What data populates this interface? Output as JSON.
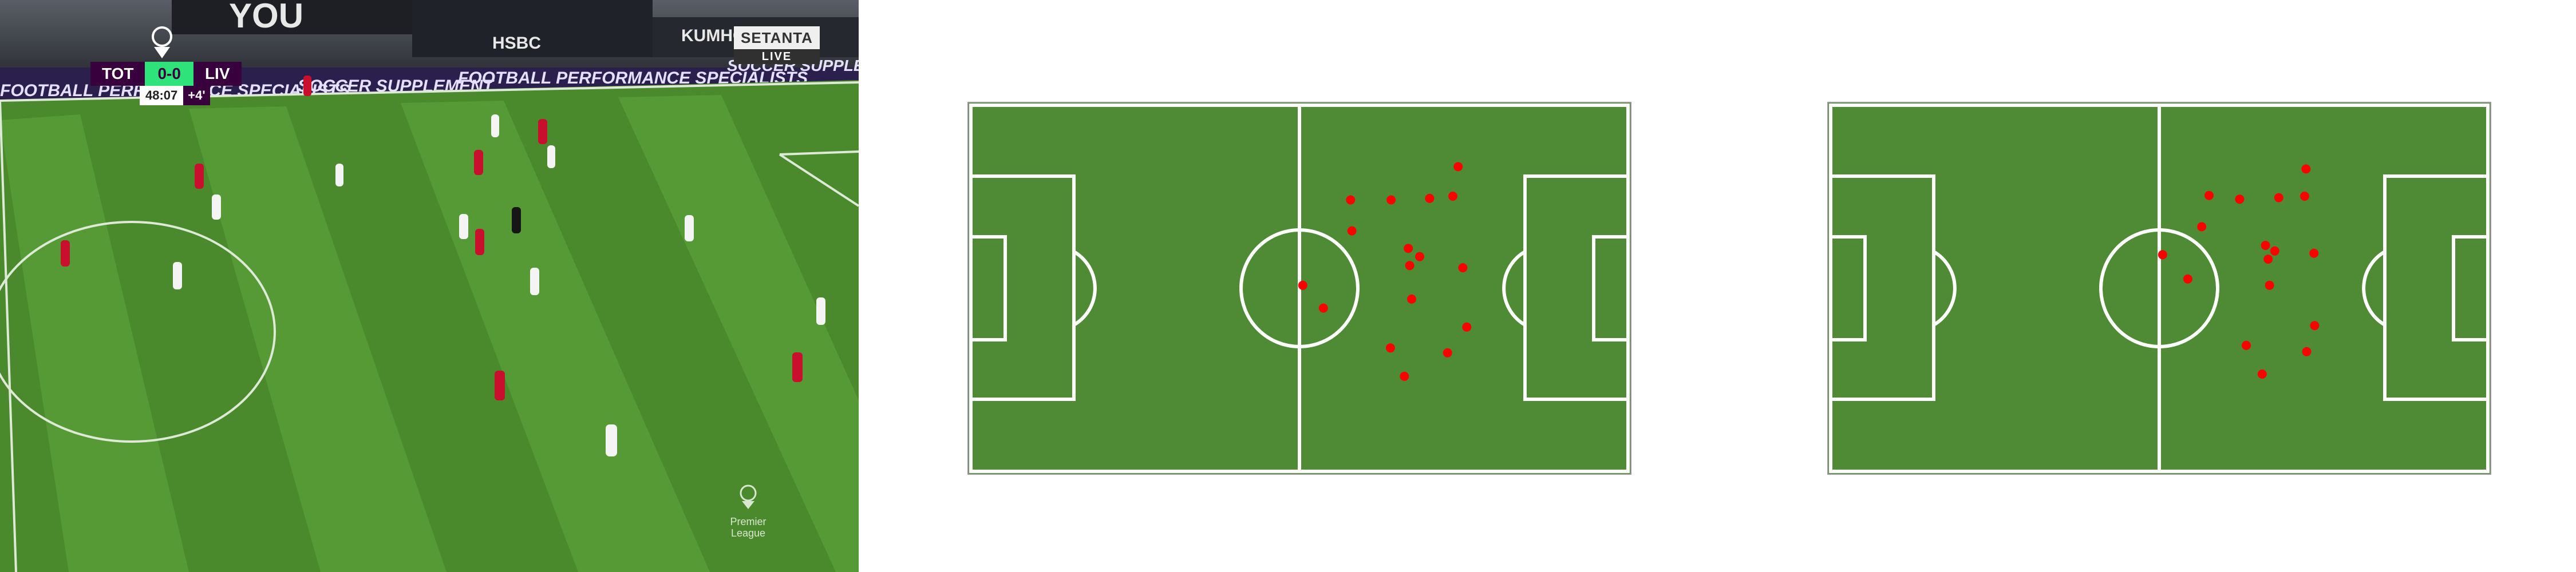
{
  "broadcast": {
    "scoreboard": {
      "home": "TOT",
      "score": "0-0",
      "away": "LIV",
      "clock": "48:07",
      "added_time": "+4'"
    },
    "broadcaster": {
      "name": "SETANTA",
      "status": "LIVE"
    },
    "hoardings": [
      "FOOTBALL PERFORMANCE SPECIALISTS",
      "SOCCER SUPPLEMENT",
      "FOOTBALL PERFORMANCE SPECIALISTS",
      "SOCCER SUPPLEMENT"
    ],
    "stand_boards": [
      "YOU",
      "HSBC",
      "KUMHO"
    ],
    "watermark": {
      "line1": "Premier",
      "line2": "League"
    },
    "colors": {
      "team_red": "#c8102e",
      "team_white": "#f4f4f4",
      "grass": "#4a8a2c",
      "scoreboard_bg": "#38003c",
      "score_bg": "#2de37a"
    }
  },
  "diagrams": {
    "pitch_color": "#4f8b35",
    "line_color": "#ffffff",
    "marker_color": "#ff0000",
    "panels": [
      {
        "players": [
          [
            50.5,
            49.2
          ],
          [
            53.6,
            55.3
          ],
          [
            57.7,
            26.3
          ],
          [
            57.9,
            34.6
          ],
          [
            63.8,
            26.3
          ],
          [
            66.4,
            39.3
          ],
          [
            66.6,
            43.9
          ],
          [
            68.1,
            41.5
          ],
          [
            66.9,
            52.9
          ],
          [
            69.6,
            25.9
          ],
          [
            73.1,
            25.3
          ],
          [
            73.9,
            17.4
          ],
          [
            74.6,
            44.5
          ],
          [
            75.2,
            60.4
          ],
          [
            63.7,
            66.0
          ],
          [
            72.3,
            67.3
          ],
          [
            65.8,
            73.6
          ]
        ]
      },
      {
        "players": [
          [
            50.5,
            41.0
          ],
          [
            54.3,
            47.5
          ],
          [
            56.4,
            33.5
          ],
          [
            57.5,
            25.1
          ],
          [
            62.1,
            26.1
          ],
          [
            66.0,
            38.5
          ],
          [
            66.4,
            42.2
          ],
          [
            67.4,
            40.0
          ],
          [
            68.0,
            25.7
          ],
          [
            71.9,
            25.3
          ],
          [
            72.1,
            18.0
          ],
          [
            73.3,
            40.6
          ],
          [
            66.6,
            49.2
          ],
          [
            73.4,
            60.0
          ],
          [
            63.1,
            65.3
          ],
          [
            72.2,
            67.0
          ],
          [
            65.5,
            73.0
          ]
        ]
      }
    ]
  }
}
